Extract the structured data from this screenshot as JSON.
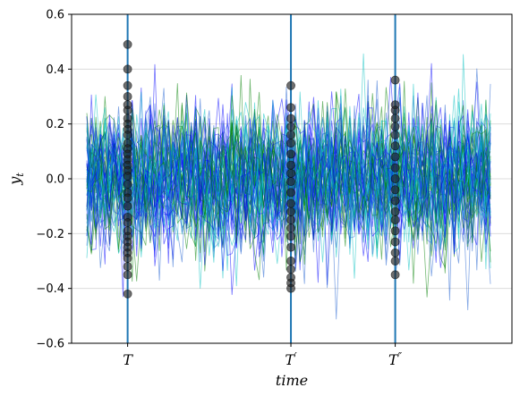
{
  "chart_data": {
    "type": "line",
    "ylim": [
      -0.6,
      0.6
    ],
    "y_ticks": [
      "0.6",
      "0.4",
      "0.2",
      "0.0",
      "−0.2",
      "−0.4",
      "−0.6"
    ],
    "y_tick_values": [
      0.6,
      0.4,
      0.2,
      0.0,
      -0.2,
      -0.4,
      -0.6
    ],
    "xlabel": "time",
    "ylabel_main": "y",
    "ylabel_sub": "t",
    "grid": "horizontal",
    "n_series": 60,
    "n_time_points": 90,
    "series_colors": [
      "#0000ff",
      "#008000",
      "#00c0c0",
      "#1e5fd0"
    ],
    "series_alpha": 0.55,
    "mean": 0.0,
    "std": 0.15,
    "markers": [
      {
        "label_main": "T",
        "label_prime": "",
        "time_index": 9
      },
      {
        "label_main": "T",
        "label_prime": "′",
        "time_index": 45
      },
      {
        "label_main": "T",
        "label_prime": "″",
        "time_index": 68
      }
    ],
    "marker_line_color": "#1f77b4",
    "marker_point_color": "#222222",
    "snapshot_points": {
      "T": [
        0.49,
        0.4,
        0.34,
        0.3,
        0.27,
        0.25,
        0.22,
        0.2,
        0.18,
        0.16,
        0.13,
        0.11,
        0.09,
        0.07,
        0.05,
        0.03,
        0.01,
        -0.02,
        -0.05,
        -0.07,
        -0.1,
        -0.14,
        -0.16,
        -0.19,
        -0.21,
        -0.23,
        -0.25,
        -0.27,
        -0.29,
        -0.32,
        -0.35,
        -0.42
      ],
      "T′": [
        0.34,
        0.26,
        0.22,
        0.19,
        0.16,
        0.13,
        0.09,
        0.05,
        0.02,
        -0.01,
        -0.05,
        -0.09,
        -0.12,
        -0.15,
        -0.18,
        -0.21,
        -0.25,
        -0.3,
        -0.33,
        -0.36,
        -0.38,
        -0.4
      ],
      "T″": [
        0.36,
        0.27,
        0.25,
        0.22,
        0.19,
        0.16,
        0.12,
        0.08,
        0.04,
        0.0,
        -0.04,
        -0.08,
        -0.12,
        -0.15,
        -0.19,
        -0.23,
        -0.27,
        -0.3,
        -0.35
      ]
    }
  }
}
